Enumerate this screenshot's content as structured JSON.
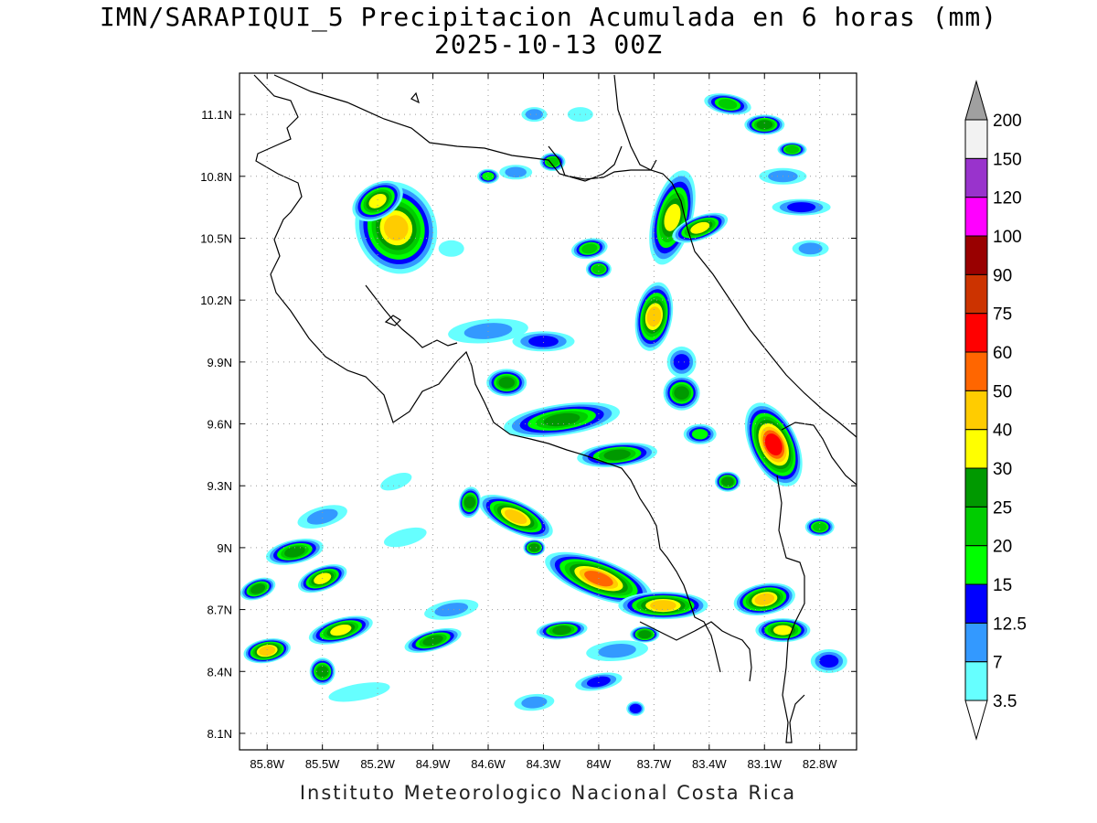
{
  "title_line1": "IMN/SARAPIQUI_5 Precipitacion Acumulada en 6 horas (mm)",
  "title_line2": "2025-10-13 00Z",
  "credit": "Instituto Meteorologico Nacional Costa Rica",
  "lat_ticks": [
    {
      "value": 11.1,
      "label": "11.1N"
    },
    {
      "value": 10.8,
      "label": "10.8N"
    },
    {
      "value": 10.5,
      "label": "10.5N"
    },
    {
      "value": 10.2,
      "label": "10.2N"
    },
    {
      "value": 9.9,
      "label": "9.9N"
    },
    {
      "value": 9.6,
      "label": "9.6N"
    },
    {
      "value": 9.3,
      "label": "9.3N"
    },
    {
      "value": 9.0,
      "label": "9N"
    },
    {
      "value": 8.7,
      "label": "8.7N"
    },
    {
      "value": 8.4,
      "label": "8.4N"
    },
    {
      "value": 8.1,
      "label": "8.1N"
    }
  ],
  "lon_ticks": [
    {
      "value": -85.8,
      "label": "85.8W"
    },
    {
      "value": -85.5,
      "label": "85.5W"
    },
    {
      "value": -85.2,
      "label": "85.2W"
    },
    {
      "value": -84.9,
      "label": "84.9W"
    },
    {
      "value": -84.6,
      "label": "84.6W"
    },
    {
      "value": -84.3,
      "label": "84.3W"
    },
    {
      "value": -84.0,
      "label": "84W"
    },
    {
      "value": -83.7,
      "label": "83.7W"
    },
    {
      "value": -83.4,
      "label": "83.4W"
    },
    {
      "value": -83.1,
      "label": "83.1W"
    },
    {
      "value": -82.8,
      "label": "82.8W"
    }
  ],
  "colorbar": [
    {
      "label": "3.5",
      "color": "#66ffff"
    },
    {
      "label": "7",
      "color": "#3399ff"
    },
    {
      "label": "12.5",
      "color": "#0000ff"
    },
    {
      "label": "15",
      "color": "#00ff00"
    },
    {
      "label": "20",
      "color": "#00cc00"
    },
    {
      "label": "25",
      "color": "#009900"
    },
    {
      "label": "30",
      "color": "#ffff00"
    },
    {
      "label": "40",
      "color": "#ffcc00"
    },
    {
      "label": "50",
      "color": "#ff6600"
    },
    {
      "label": "60",
      "color": "#ff0000"
    },
    {
      "label": "75",
      "color": "#cc3300"
    },
    {
      "label": "90",
      "color": "#990000"
    },
    {
      "label": "100",
      "color": "#ff00ff"
    },
    {
      "label": "120",
      "color": "#9933cc"
    },
    {
      "label": "150",
      "color": "#f2f2f2"
    },
    {
      "label": "200",
      "color": "#a0a0a0"
    }
  ],
  "colorbar_over_color": "#a0a0a0",
  "colorbar_under_color": "#ffffff",
  "precip_cells": [
    {
      "name": "cell-guanacaste-north",
      "lon": -85.1,
      "lat": 10.55,
      "rx": 40,
      "ry": 48,
      "rot": -20,
      "peak": 40
    },
    {
      "name": "cell-guanacaste-north-2",
      "lon": -85.2,
      "lat": 10.68,
      "rx": 26,
      "ry": 16,
      "rot": -30,
      "peak": 30
    },
    {
      "name": "cell-lake-arenal",
      "lon": -84.6,
      "lat": 10.8,
      "rx": 8,
      "ry": 5,
      "rot": 0,
      "peak": 15
    },
    {
      "name": "cell-northern-plains",
      "lon": -84.0,
      "lat": 10.35,
      "rx": 10,
      "ry": 7,
      "rot": 0,
      "peak": 20
    },
    {
      "name": "cell-north-central",
      "lon": -84.05,
      "lat": 10.45,
      "rx": 16,
      "ry": 8,
      "rot": -10,
      "peak": 20
    },
    {
      "name": "cell-san-carlos",
      "lon": -84.25,
      "lat": 10.87,
      "rx": 10,
      "ry": 7,
      "rot": 0,
      "peak": 20
    },
    {
      "name": "cell-caribbean-north-a",
      "lon": -83.6,
      "lat": 10.6,
      "rx": 18,
      "ry": 50,
      "rot": 15,
      "peak": 30
    },
    {
      "name": "cell-caribbean-north-b",
      "lon": -83.7,
      "lat": 10.12,
      "rx": 16,
      "ry": 35,
      "rot": 10,
      "peak": 40
    },
    {
      "name": "cell-barra-colorado",
      "lon": -83.45,
      "lat": 10.55,
      "rx": 28,
      "ry": 10,
      "rot": -20,
      "peak": 30
    },
    {
      "name": "cell-sea-north-1",
      "lon": -83.3,
      "lat": 11.15,
      "rx": 22,
      "ry": 8,
      "rot": 10,
      "peak": 20
    },
    {
      "name": "cell-sea-north-2",
      "lon": -83.1,
      "lat": 11.05,
      "rx": 18,
      "ry": 8,
      "rot": 0,
      "peak": 25
    },
    {
      "name": "cell-sea-north-3",
      "lon": -82.95,
      "lat": 10.93,
      "rx": 12,
      "ry": 5,
      "rot": 0,
      "peak": 20
    },
    {
      "name": "cell-sea-north-4",
      "lon": -82.9,
      "lat": 10.65,
      "rx": 28,
      "ry": 6,
      "rot": 0,
      "peak": 12.5
    },
    {
      "name": "cell-central-valley",
      "lon": -84.2,
      "lat": 9.62,
      "rx": 60,
      "ry": 14,
      "rot": -8,
      "peak": 25
    },
    {
      "name": "cell-central-valley-2",
      "lon": -84.5,
      "lat": 9.8,
      "rx": 18,
      "ry": 12,
      "rot": 0,
      "peak": 25
    },
    {
      "name": "cell-cartago",
      "lon": -83.9,
      "lat": 9.45,
      "rx": 40,
      "ry": 10,
      "rot": -5,
      "peak": 25
    },
    {
      "name": "cell-turrialba",
      "lon": -83.55,
      "lat": 9.75,
      "rx": 16,
      "ry": 16,
      "rot": 0,
      "peak": 25
    },
    {
      "name": "cell-talamanca-north",
      "lon": -83.05,
      "lat": 9.5,
      "rx": 22,
      "ry": 46,
      "rot": -25,
      "peak": 60
    },
    {
      "name": "cell-talamanca-mid",
      "lon": -83.3,
      "lat": 9.32,
      "rx": 10,
      "ry": 8,
      "rot": 0,
      "peak": 25
    },
    {
      "name": "cell-sixaola",
      "lon": -82.8,
      "lat": 9.1,
      "rx": 12,
      "ry": 7,
      "rot": 0,
      "peak": 20
    },
    {
      "name": "cell-southern-band-a",
      "lon": -84.45,
      "lat": 9.15,
      "rx": 40,
      "ry": 14,
      "rot": 25,
      "peak": 40
    },
    {
      "name": "cell-southern-band-b",
      "lon": -84.0,
      "lat": 8.85,
      "rx": 58,
      "ry": 18,
      "rot": 20,
      "peak": 50
    },
    {
      "name": "cell-southern-band-c",
      "lon": -83.65,
      "lat": 8.72,
      "rx": 45,
      "ry": 12,
      "rot": 0,
      "peak": 40
    },
    {
      "name": "cell-parrita",
      "lon": -84.7,
      "lat": 9.22,
      "rx": 8,
      "ry": 14,
      "rot": 10,
      "peak": 25
    },
    {
      "name": "cell-quepos",
      "lon": -84.35,
      "lat": 9.0,
      "rx": 8,
      "ry": 6,
      "rot": 0,
      "peak": 25
    },
    {
      "name": "cell-osa-1",
      "lon": -83.1,
      "lat": 8.75,
      "rx": 30,
      "ry": 14,
      "rot": -10,
      "peak": 40
    },
    {
      "name": "cell-osa-2",
      "lon": -83.0,
      "lat": 8.6,
      "rx": 26,
      "ry": 10,
      "rot": 0,
      "peak": 30
    },
    {
      "name": "cell-pacific-1",
      "lon": -85.65,
      "lat": 8.98,
      "rx": 28,
      "ry": 10,
      "rot": -12,
      "peak": 25
    },
    {
      "name": "cell-pacific-2",
      "lon": -85.5,
      "lat": 8.85,
      "rx": 24,
      "ry": 10,
      "rot": -20,
      "peak": 30
    },
    {
      "name": "cell-pacific-3",
      "lon": -85.85,
      "lat": 8.8,
      "rx": 16,
      "ry": 8,
      "rot": -20,
      "peak": 25
    },
    {
      "name": "cell-pacific-4",
      "lon": -85.4,
      "lat": 8.6,
      "rx": 32,
      "ry": 10,
      "rot": -15,
      "peak": 30
    },
    {
      "name": "cell-pacific-5",
      "lon": -85.8,
      "lat": 8.5,
      "rx": 22,
      "ry": 10,
      "rot": -10,
      "peak": 40
    },
    {
      "name": "cell-pacific-6",
      "lon": -85.5,
      "lat": 8.4,
      "rx": 10,
      "ry": 12,
      "rot": 0,
      "peak": 25
    },
    {
      "name": "cell-pacific-7",
      "lon": -84.9,
      "lat": 8.55,
      "rx": 28,
      "ry": 8,
      "rot": -15,
      "peak": 25
    },
    {
      "name": "cell-pacific-8",
      "lon": -84.2,
      "lat": 8.6,
      "rx": 24,
      "ry": 7,
      "rot": -5,
      "peak": 25
    },
    {
      "name": "cell-pacific-9",
      "lon": -83.75,
      "lat": 8.58,
      "rx": 12,
      "ry": 6,
      "rot": 0,
      "peak": 25
    },
    {
      "name": "cell-pacific-10",
      "lon": -84.0,
      "lat": 8.35,
      "rx": 22,
      "ry": 6,
      "rot": -10,
      "peak": 12.5
    },
    {
      "name": "cell-pacific-11",
      "lon": -83.8,
      "lat": 8.22,
      "rx": 6,
      "ry": 5,
      "rot": 0,
      "peak": 12.5
    },
    {
      "name": "cell-pacific-12",
      "lon": -82.75,
      "lat": 8.45,
      "rx": 16,
      "ry": 10,
      "rot": 0,
      "peak": 12.5
    },
    {
      "name": "cell-pacific-13",
      "lon": -84.35,
      "lat": 8.25,
      "rx": 18,
      "ry": 6,
      "rot": -5,
      "peak": 7
    },
    {
      "name": "cell-pacific-14",
      "lon": -85.1,
      "lat": 9.32,
      "rx": 14,
      "ry": 5,
      "rot": -20,
      "peak": 3.5
    },
    {
      "name": "cell-pacific-15",
      "lon": -85.05,
      "lat": 9.05,
      "rx": 20,
      "ry": 6,
      "rot": -15,
      "peak": 3.5
    },
    {
      "name": "cell-pacific-16",
      "lon": -85.5,
      "lat": 9.15,
      "rx": 24,
      "ry": 8,
      "rot": -15,
      "peak": 7
    },
    {
      "name": "cell-pacific-17",
      "lon": -84.8,
      "lat": 8.7,
      "rx": 26,
      "ry": 7,
      "rot": -10,
      "peak": 7
    },
    {
      "name": "cell-pacific-18",
      "lon": -83.9,
      "lat": 8.5,
      "rx": 30,
      "ry": 8,
      "rot": -5,
      "peak": 7
    },
    {
      "name": "cell-pacific-19",
      "lon": -85.3,
      "lat": 8.3,
      "rx": 30,
      "ry": 6,
      "rot": -10,
      "peak": 3.5
    },
    {
      "name": "cell-caribbean-sea-1",
      "lon": -82.85,
      "lat": 10.45,
      "rx": 16,
      "ry": 6,
      "rot": 0,
      "peak": 7
    },
    {
      "name": "cell-caribbean-sea-2",
      "lon": -83.0,
      "lat": 10.8,
      "rx": 22,
      "ry": 6,
      "rot": 0,
      "peak": 7
    },
    {
      "name": "cell-north-strat-1",
      "lon": -84.6,
      "lat": 10.05,
      "rx": 40,
      "ry": 10,
      "rot": -5,
      "peak": 7
    },
    {
      "name": "cell-north-strat-2",
      "lon": -84.3,
      "lat": 10.0,
      "rx": 30,
      "ry": 8,
      "rot": 0,
      "peak": 12.5
    },
    {
      "name": "cell-north-strat-3",
      "lon": -84.8,
      "lat": 10.45,
      "rx": 10,
      "ry": 6,
      "rot": 0,
      "peak": 3.5
    },
    {
      "name": "cell-north-strat-4",
      "lon": -84.1,
      "lat": 11.1,
      "rx": 10,
      "ry": 5,
      "rot": 0,
      "peak": 3.5
    },
    {
      "name": "cell-north-strat-5",
      "lon": -84.45,
      "lat": 10.82,
      "rx": 14,
      "ry": 5,
      "rot": 0,
      "peak": 7
    },
    {
      "name": "cell-north-strat-6",
      "lon": -84.35,
      "lat": 11.1,
      "rx": 10,
      "ry": 5,
      "rot": 0,
      "peak": 7
    },
    {
      "name": "cell-north-strat-7",
      "lon": -83.55,
      "lat": 9.9,
      "rx": 12,
      "ry": 14,
      "rot": 0,
      "peak": 12.5
    },
    {
      "name": "cell-north-strat-8",
      "lon": -83.45,
      "lat": 9.55,
      "rx": 14,
      "ry": 8,
      "rot": 0,
      "peak": 15
    }
  ]
}
